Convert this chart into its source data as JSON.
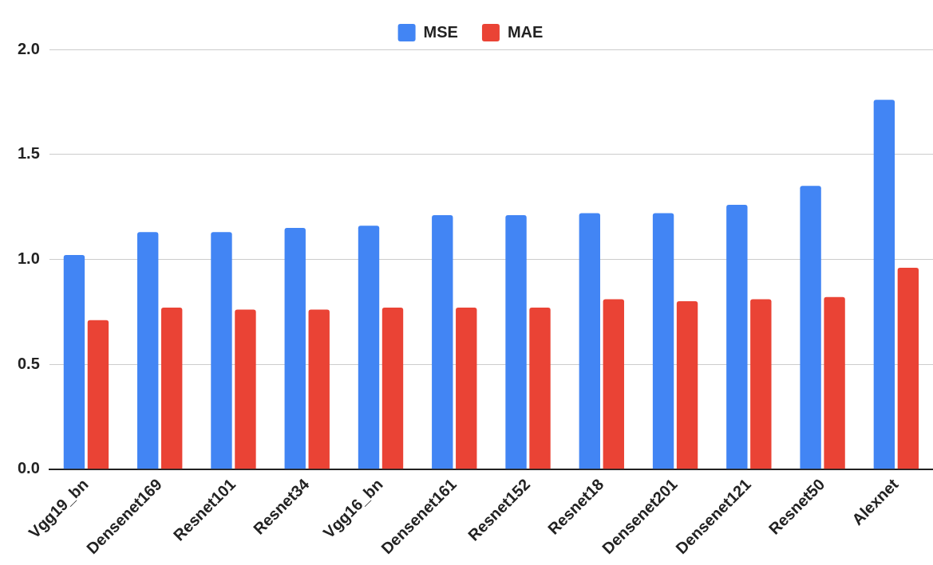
{
  "chart_data": {
    "type": "bar",
    "categories": [
      "Vgg19_bn",
      "Densenet169",
      "Resnet101",
      "Resnet34",
      "Vgg16_bn",
      "Densenet161",
      "Resnet152",
      "Resnet18",
      "Densenet201",
      "Densenet121",
      "Resnet50",
      "Alexnet"
    ],
    "series": [
      {
        "name": "MSE",
        "color": "#4285f4",
        "values": [
          1.02,
          1.13,
          1.13,
          1.15,
          1.16,
          1.21,
          1.21,
          1.22,
          1.22,
          1.26,
          1.35,
          1.76
        ]
      },
      {
        "name": "MAE",
        "color": "#ea4335",
        "values": [
          0.71,
          0.77,
          0.76,
          0.76,
          0.77,
          0.77,
          0.77,
          0.81,
          0.8,
          0.81,
          0.82,
          0.96
        ]
      }
    ],
    "ylim": [
      0,
      2
    ],
    "yticks": [
      {
        "value": 0,
        "label": "0.0"
      },
      {
        "value": 0.5,
        "label": "0.5"
      },
      {
        "value": 1,
        "label": "1.0"
      },
      {
        "value": 1.5,
        "label": "1.5"
      },
      {
        "value": 2,
        "label": "2.0"
      }
    ],
    "grid": "y",
    "legend": "top"
  }
}
